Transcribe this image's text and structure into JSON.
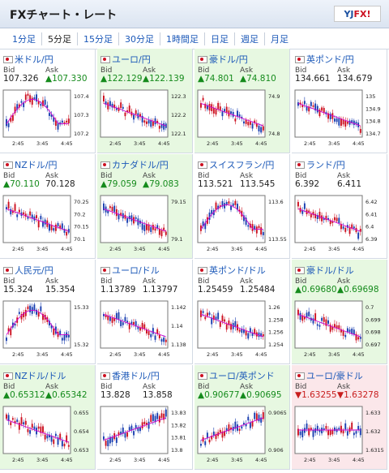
{
  "title": "FXチャート・レート",
  "logo": {
    "yj": "YJ",
    "fx": "FX!"
  },
  "tabs": [
    "1分足",
    "5分足",
    "15分足",
    "30分足",
    "1時間足",
    "日足",
    "週足",
    "月足"
  ],
  "active_tab": 1,
  "labels": {
    "bid": "Bid",
    "ask": "Ask"
  },
  "x_ticks": [
    "2:45",
    "3:45",
    "4:45"
  ],
  "colors": {
    "up": "#158b1c",
    "down": "#c81e1e",
    "ma": "#d000d0",
    "bull": "#cc1020",
    "bear": "#1a3fb0"
  },
  "pairs": [
    {
      "name": "米ドル/円",
      "bid": "107.326",
      "ask": "▲107.330",
      "bid_dir": "",
      "ask_dir": "up",
      "hl": "",
      "yticks": [
        "107.4",
        "107.3",
        "107.2"
      ],
      "trend": "peak"
    },
    {
      "name": "ユーロ/円",
      "bid": "▲122.129",
      "ask": "▲122.139",
      "bid_dir": "up",
      "ask_dir": "up",
      "hl": "green",
      "yticks": [
        "122.3",
        "122.2",
        "122.1"
      ],
      "trend": "down"
    },
    {
      "name": "豪ドル/円",
      "bid": "▲74.801",
      "ask": "▲74.810",
      "bid_dir": "up",
      "ask_dir": "up",
      "hl": "green",
      "yticks": [
        "74.9",
        "74.8"
      ],
      "trend": "down"
    },
    {
      "name": "英ポンド/円",
      "bid": "134.661",
      "ask": "134.679",
      "bid_dir": "",
      "ask_dir": "",
      "hl": "",
      "yticks": [
        "135",
        "134.9",
        "134.8",
        "134.7"
      ],
      "trend": "down"
    },
    {
      "name": "NZドル/円",
      "bid": "▲70.110",
      "ask": "70.128",
      "bid_dir": "up",
      "ask_dir": "",
      "hl": "",
      "yticks": [
        "70.25",
        "70.2",
        "70.15",
        "70.1"
      ],
      "trend": "down"
    },
    {
      "name": "カナダドル/円",
      "bid": "▲79.059",
      "ask": "▲79.083",
      "bid_dir": "up",
      "ask_dir": "up",
      "hl": "green",
      "yticks": [
        "79.15",
        "79.1"
      ],
      "trend": "down"
    },
    {
      "name": "スイスフラン/円",
      "bid": "113.521",
      "ask": "113.545",
      "bid_dir": "",
      "ask_dir": "",
      "hl": "",
      "yticks": [
        "113.6",
        "113.55"
      ],
      "trend": "peak"
    },
    {
      "name": "ランド/円",
      "bid": "6.392",
      "ask": "6.411",
      "bid_dir": "",
      "ask_dir": "",
      "hl": "",
      "yticks": [
        "6.42",
        "6.41",
        "6.4",
        "6.39"
      ],
      "trend": "down"
    },
    {
      "name": "人民元/円",
      "bid": "15.324",
      "ask": "15.354",
      "bid_dir": "",
      "ask_dir": "",
      "hl": "",
      "yticks": [
        "15.33",
        "15.32"
      ],
      "trend": "peak"
    },
    {
      "name": "ユーロ/ドル",
      "bid": "1.13789",
      "ask": "1.13797",
      "bid_dir": "",
      "ask_dir": "",
      "hl": "",
      "yticks": [
        "1.142",
        "1.14",
        "1.138"
      ],
      "trend": "down"
    },
    {
      "name": "英ポンド/ドル",
      "bid": "1.25459",
      "ask": "1.25484",
      "bid_dir": "",
      "ask_dir": "",
      "hl": "",
      "yticks": [
        "1.26",
        "1.258",
        "1.256",
        "1.254"
      ],
      "trend": "down"
    },
    {
      "name": "豪ドル/ドル",
      "bid": "▲0.69680",
      "ask": "▲0.69698",
      "bid_dir": "up",
      "ask_dir": "up",
      "hl": "green",
      "yticks": [
        "0.7",
        "0.699",
        "0.698",
        "0.697"
      ],
      "trend": "down"
    },
    {
      "name": "NZドル/ドル",
      "bid": "▲0.65312",
      "ask": "▲0.65342",
      "bid_dir": "up",
      "ask_dir": "up",
      "hl": "green",
      "yticks": [
        "0.655",
        "0.654",
        "0.653"
      ],
      "trend": "down"
    },
    {
      "name": "香港ドル/円",
      "bid": "13.828",
      "ask": "13.858",
      "bid_dir": "",
      "ask_dir": "",
      "hl": "",
      "yticks": [
        "13.83",
        "13.82",
        "13.81",
        "13.8"
      ],
      "trend": "up"
    },
    {
      "name": "ユーロ/英ポンド",
      "bid": "▲0.90677",
      "ask": "▲0.90695",
      "bid_dir": "up",
      "ask_dir": "up",
      "hl": "green",
      "yticks": [
        "0.9065",
        "0.906"
      ],
      "trend": "up"
    },
    {
      "name": "ユーロ/豪ドル",
      "bid": "▼1.63255",
      "ask": "▼1.63278",
      "bid_dir": "down",
      "ask_dir": "down",
      "hl": "red",
      "yticks": [
        "1.633",
        "1.632",
        "1.6315"
      ],
      "trend": "flat"
    }
  ]
}
